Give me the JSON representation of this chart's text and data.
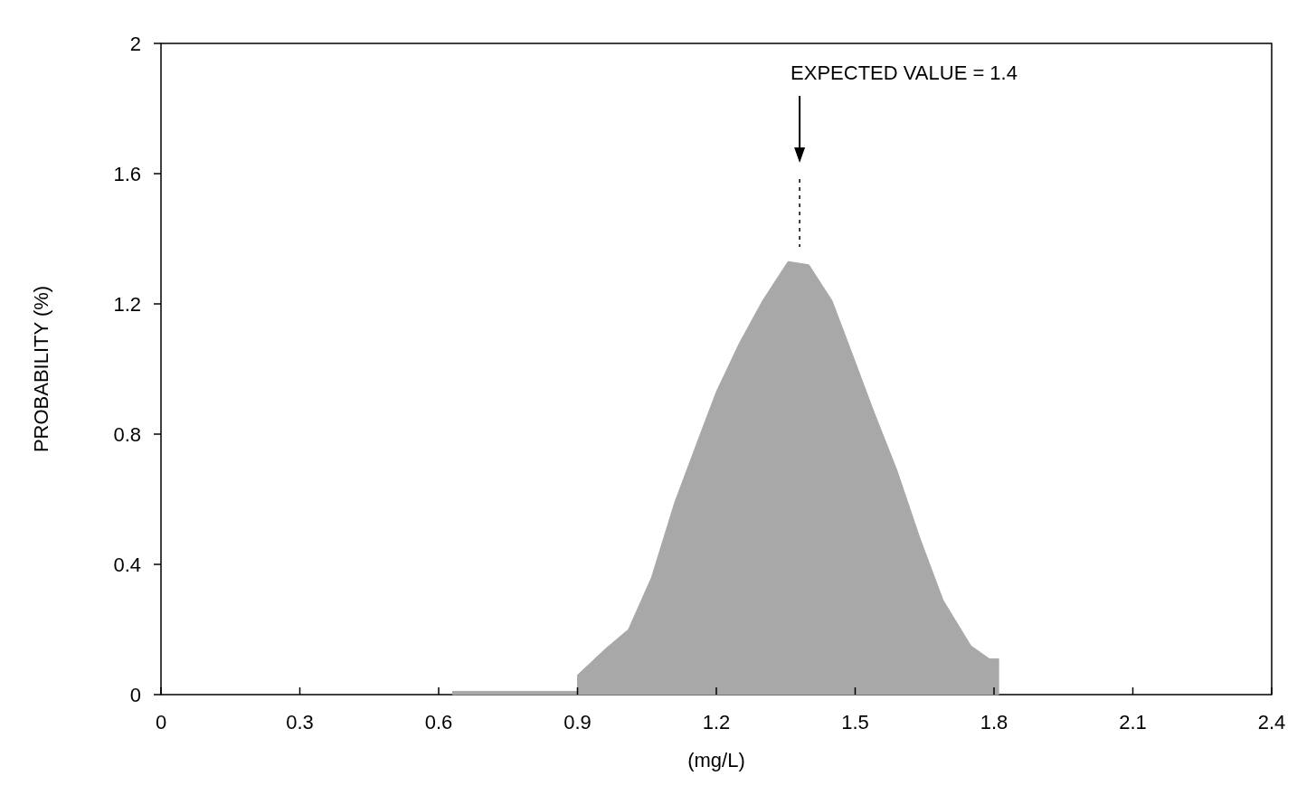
{
  "chart_data": {
    "type": "area",
    "xlabel": "(mg/L)",
    "ylabel": "PROBABILITY (%)",
    "x": [
      0.63,
      0.9,
      0.9,
      0.93,
      0.96,
      1.01,
      1.06,
      1.11,
      1.16,
      1.2,
      1.25,
      1.3,
      1.355,
      1.4,
      1.45,
      1.49,
      1.54,
      1.59,
      1.64,
      1.69,
      1.75,
      1.79,
      1.81,
      1.81
    ],
    "series": [
      {
        "color": "#a8a8a8",
        "values": [
          0.01,
          0.01,
          0.06,
          0.1,
          0.14,
          0.2,
          0.36,
          0.59,
          0.78,
          0.93,
          1.08,
          1.21,
          1.33,
          1.32,
          1.21,
          1.06,
          0.87,
          0.69,
          0.48,
          0.29,
          0.15,
          0.11,
          0.11,
          0
        ]
      }
    ],
    "xlim": [
      0,
      2.4
    ],
    "xticks": [
      0,
      0.3,
      0.6,
      0.9,
      1.2,
      1.5,
      1.8,
      2.1,
      2.4
    ],
    "ylim": [
      0,
      2
    ],
    "yticks": [
      0,
      0.4,
      0.8,
      1.2,
      1.6,
      2
    ],
    "annotations": [
      "EXPECTED VALUE = 1.4"
    ],
    "grid": false
  }
}
